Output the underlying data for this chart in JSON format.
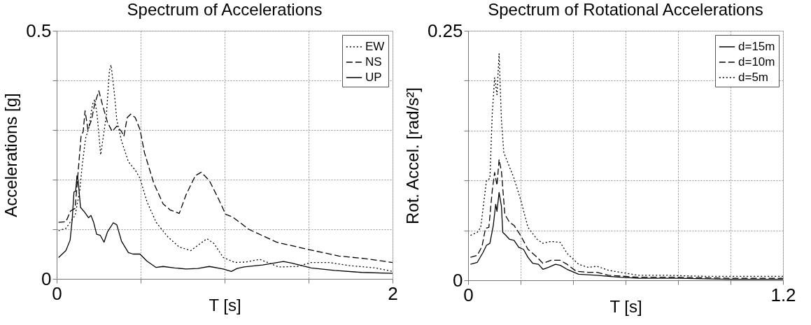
{
  "chart_data": [
    {
      "type": "line",
      "title": "Spectrum of Accelerations",
      "xlabel": "T [s]",
      "ylabel": "Accelerations [g]",
      "xlim": [
        0,
        2
      ],
      "ylim": [
        0,
        0.5
      ],
      "xticks": [
        0,
        {
          "value": 0.5,
          "label": null
        },
        {
          "value": 1,
          "label": null
        },
        {
          "value": 1.5,
          "label": null
        },
        2
      ],
      "yticks": [
        0,
        {
          "value": 0.1,
          "label": null
        },
        {
          "value": 0.2,
          "label": null
        },
        {
          "value": 0.3,
          "label": null
        },
        {
          "value": 0.4,
          "label": null
        },
        0.5
      ],
      "grid": true,
      "legend": "top right",
      "series": [
        {
          "name": "EW",
          "color": "#000000",
          "line_style": "dotted",
          "x": [
            0.011,
            0.055,
            0.11,
            0.138,
            0.151,
            0.172,
            0.193,
            0.213,
            0.227,
            0.241,
            0.262,
            0.296,
            0.314,
            0.324,
            0.344,
            0.358,
            0.386,
            0.427,
            0.468,
            0.496,
            0.537,
            0.592,
            0.661,
            0.73,
            0.799,
            0.854,
            0.895,
            0.937,
            0.992,
            1.061,
            1.129,
            1.185,
            1.212,
            1.322,
            1.432,
            1.515,
            1.625,
            1.735,
            1.9,
            2.0
          ],
          "values": [
            0.097,
            0.102,
            0.128,
            0.179,
            0.226,
            0.283,
            0.306,
            0.351,
            0.362,
            0.33,
            0.25,
            0.33,
            0.419,
            0.431,
            0.372,
            0.32,
            0.278,
            0.236,
            0.219,
            0.203,
            0.156,
            0.114,
            0.085,
            0.064,
            0.057,
            0.071,
            0.081,
            0.071,
            0.043,
            0.033,
            0.034,
            0.038,
            0.039,
            0.024,
            0.025,
            0.033,
            0.033,
            0.027,
            0.022,
            0.015
          ]
        },
        {
          "name": "NS",
          "color": "#000000",
          "line_style": "dashed",
          "x": [
            0.011,
            0.055,
            0.083,
            0.11,
            0.145,
            0.158,
            0.169,
            0.186,
            0.207,
            0.227,
            0.251,
            0.275,
            0.303,
            0.331,
            0.358,
            0.386,
            0.4,
            0.42,
            0.441,
            0.468,
            0.496,
            0.523,
            0.578,
            0.634,
            0.675,
            0.73,
            0.771,
            0.826,
            0.861,
            0.909,
            0.964,
            1.006,
            1.047,
            1.143,
            1.309,
            1.488,
            1.681,
            1.832,
            2.0
          ],
          "values": [
            0.114,
            0.115,
            0.137,
            0.142,
            0.287,
            0.297,
            0.339,
            0.301,
            0.32,
            0.353,
            0.379,
            0.348,
            0.315,
            0.297,
            0.308,
            0.297,
            0.287,
            0.325,
            0.332,
            0.325,
            0.301,
            0.254,
            0.193,
            0.151,
            0.139,
            0.132,
            0.17,
            0.208,
            0.215,
            0.198,
            0.161,
            0.13,
            0.125,
            0.1,
            0.074,
            0.06,
            0.046,
            0.041,
            0.033
          ]
        },
        {
          "name": "UP",
          "color": "#000000",
          "line_style": "solid",
          "x": [
            0.011,
            0.055,
            0.08,
            0.092,
            0.103,
            0.113,
            0.121,
            0.128,
            0.135,
            0.142,
            0.165,
            0.19,
            0.204,
            0.22,
            0.238,
            0.259,
            0.282,
            0.303,
            0.337,
            0.358,
            0.386,
            0.427,
            0.455,
            0.496,
            0.537,
            0.592,
            0.634,
            0.702,
            0.771,
            0.84,
            0.909,
            0.992,
            1.04,
            1.074,
            1.117,
            1.226,
            1.35,
            1.399,
            1.515,
            1.653,
            1.817,
            2.0
          ],
          "values": [
            0.043,
            0.057,
            0.078,
            0.118,
            0.175,
            0.177,
            0.208,
            0.198,
            0.171,
            0.144,
            0.135,
            0.123,
            0.128,
            0.114,
            0.09,
            0.088,
            0.074,
            0.095,
            0.113,
            0.109,
            0.076,
            0.053,
            0.05,
            0.05,
            0.036,
            0.023,
            0.025,
            0.022,
            0.02,
            0.021,
            0.025,
            0.02,
            0.015,
            0.021,
            0.024,
            0.028,
            0.035,
            0.032,
            0.022,
            0.017,
            0.013,
            0.011
          ]
        }
      ]
    },
    {
      "type": "line",
      "title": "Spectrum of Rotational Accelerations",
      "xlabel": "T [s]",
      "ylabel": "Rot. Accel. [rad/s²]",
      "xlim": [
        0,
        1.2
      ],
      "ylim": [
        0,
        0.25
      ],
      "xticks": [
        0,
        {
          "value": 0.2,
          "label": null
        },
        {
          "value": 0.4,
          "label": null
        },
        {
          "value": 0.6,
          "label": null
        },
        {
          "value": 0.8,
          "label": null
        },
        {
          "value": 1,
          "label": null
        },
        1.2
      ],
      "yticks": [
        0,
        {
          "value": 0.05,
          "label": null
        },
        {
          "value": 0.1,
          "label": null
        },
        {
          "value": 0.15,
          "label": null
        },
        {
          "value": 0.2,
          "label": null
        },
        0.25
      ],
      "grid": true,
      "legend": "top right",
      "series": [
        {
          "name": "d=15m",
          "color": "#000000",
          "line_style": "solid",
          "x": [
            0.009,
            0.035,
            0.057,
            0.07,
            0.083,
            0.096,
            0.105,
            0.11,
            0.118,
            0.127,
            0.132,
            0.14,
            0.158,
            0.175,
            0.193,
            0.211,
            0.228,
            0.246,
            0.268,
            0.285,
            0.307,
            0.333,
            0.351,
            0.377,
            0.421,
            0.491,
            0.535,
            0.579,
            0.649,
            0.8,
            1.0,
            1.2
          ],
          "values": [
            0.016,
            0.018,
            0.028,
            0.035,
            0.037,
            0.055,
            0.076,
            0.069,
            0.088,
            0.074,
            0.048,
            0.046,
            0.041,
            0.04,
            0.033,
            0.031,
            0.023,
            0.017,
            0.016,
            0.011,
            0.013,
            0.016,
            0.015,
            0.011,
            0.006,
            0.005,
            0.004,
            0.003,
            0.002,
            0.002,
            0.001,
            0.001
          ]
        },
        {
          "name": "d=10m",
          "color": "#000000",
          "line_style": "dashed",
          "x": [
            0.009,
            0.035,
            0.053,
            0.066,
            0.079,
            0.092,
            0.101,
            0.11,
            0.118,
            0.127,
            0.14,
            0.158,
            0.175,
            0.202,
            0.228,
            0.246,
            0.263,
            0.285,
            0.316,
            0.351,
            0.377,
            0.412,
            0.456,
            0.491,
            0.535,
            0.649,
            0.8,
            1.0,
            1.2
          ],
          "values": [
            0.023,
            0.025,
            0.034,
            0.052,
            0.053,
            0.09,
            0.108,
            0.095,
            0.121,
            0.109,
            0.066,
            0.058,
            0.055,
            0.044,
            0.031,
            0.027,
            0.023,
            0.017,
            0.02,
            0.02,
            0.016,
            0.009,
            0.008,
            0.008,
            0.005,
            0.003,
            0.003,
            0.002,
            0.002
          ]
        },
        {
          "name": "d=5m",
          "color": "#000000",
          "line_style": "dotted",
          "x": [
            0.009,
            0.035,
            0.048,
            0.07,
            0.083,
            0.092,
            0.101,
            0.11,
            0.118,
            0.127,
            0.136,
            0.154,
            0.175,
            0.202,
            0.228,
            0.263,
            0.285,
            0.316,
            0.351,
            0.377,
            0.421,
            0.456,
            0.491,
            0.535,
            0.579,
            0.649,
            0.75,
            0.9,
            1.05,
            1.2
          ],
          "values": [
            0.045,
            0.048,
            0.053,
            0.1,
            0.102,
            0.167,
            0.203,
            0.186,
            0.227,
            0.16,
            0.128,
            0.116,
            0.102,
            0.079,
            0.053,
            0.041,
            0.037,
            0.039,
            0.038,
            0.027,
            0.016,
            0.013,
            0.014,
            0.01,
            0.008,
            0.005,
            0.005,
            0.004,
            0.004,
            0.004
          ]
        }
      ]
    }
  ]
}
